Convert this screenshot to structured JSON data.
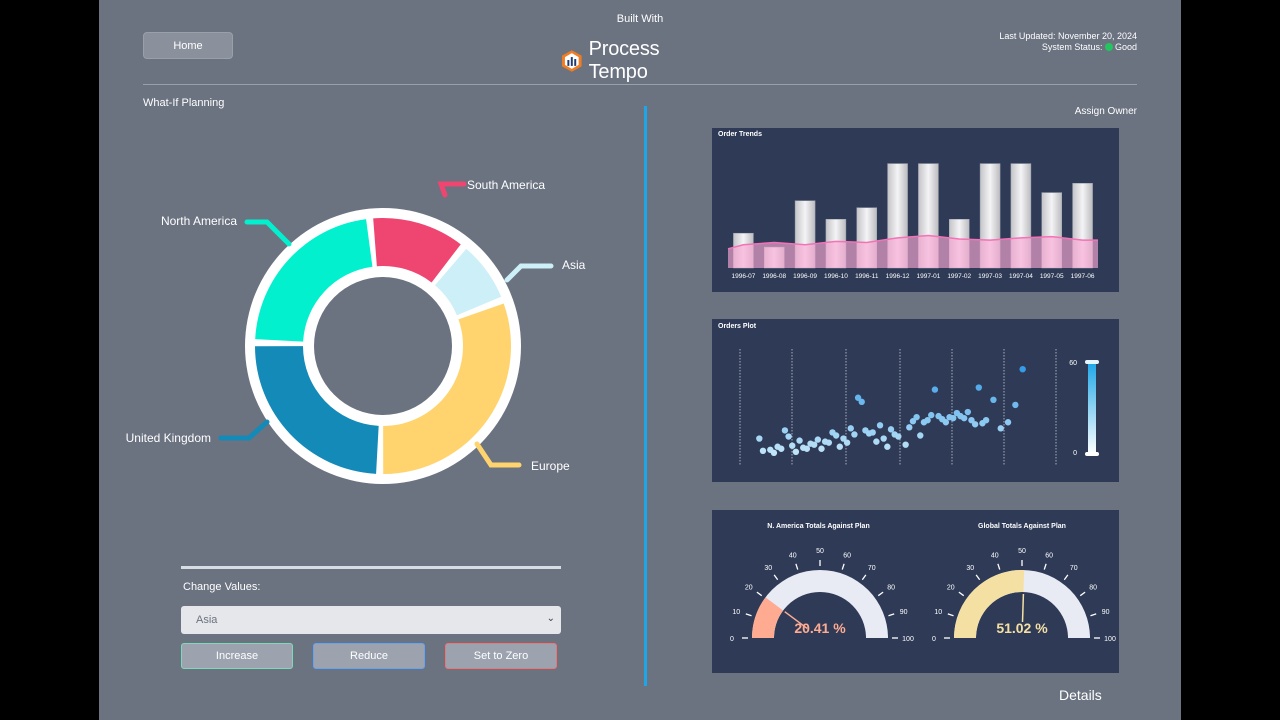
{
  "header": {
    "built_with": "Built With",
    "brand": "Process Tempo",
    "home": "Home",
    "last_updated": "Last Updated: November 20, 2024",
    "system_status_label": "System Status:",
    "system_status_value": "Good"
  },
  "left": {
    "title": "What-If Planning",
    "regions": [
      {
        "name": "South America",
        "value": 12,
        "color": "#ef4571"
      },
      {
        "name": "Asia",
        "value": 8,
        "color": "#cdeff7"
      },
      {
        "name": "Europe",
        "value": 30,
        "color": "#ffd46e"
      },
      {
        "name": "United Kingdom",
        "value": 24,
        "color": "#148ab8"
      },
      {
        "name": "North America",
        "value": 22,
        "color": "#03f0cf"
      }
    ],
    "change_values_label": "Change Values:",
    "selected_region": "Asia",
    "buttons": {
      "increase": "Increase",
      "reduce": "Reduce",
      "zero": "Set to Zero"
    }
  },
  "right": {
    "assign_owner": "Assign Owner",
    "details": "Details"
  },
  "chart_data": [
    {
      "type": "bar",
      "title": "Order Trends",
      "categories": [
        "1996-07",
        "1996-08",
        "1996-09",
        "1996-10",
        "1996-11",
        "1996-12",
        "1997-01",
        "1997-02",
        "1997-03",
        "1997-04",
        "1997-05",
        "1997-06"
      ],
      "series": [
        {
          "name": "bars",
          "values": [
            30,
            18,
            58,
            42,
            52,
            90,
            90,
            42,
            90,
            90,
            65,
            73
          ]
        },
        {
          "name": "line",
          "values": [
            20,
            22,
            20,
            23,
            22,
            26,
            28,
            25,
            24,
            26,
            27,
            24
          ]
        }
      ],
      "ylim": [
        0,
        100
      ]
    },
    {
      "type": "scatter",
      "title": "Orders Plot",
      "colorbar": {
        "min": 0,
        "max": 60
      },
      "points": [
        [
          2,
          22
        ],
        [
          3,
          10
        ],
        [
          5,
          11
        ],
        [
          6,
          8
        ],
        [
          7,
          14
        ],
        [
          8,
          12
        ],
        [
          9,
          30
        ],
        [
          10,
          24
        ],
        [
          11,
          15
        ],
        [
          12,
          9
        ],
        [
          13,
          20
        ],
        [
          14,
          13
        ],
        [
          15,
          12
        ],
        [
          16,
          17
        ],
        [
          17,
          16
        ],
        [
          18,
          21
        ],
        [
          19,
          12
        ],
        [
          20,
          19
        ],
        [
          21,
          18
        ],
        [
          22,
          28
        ],
        [
          23,
          25
        ],
        [
          24,
          14
        ],
        [
          25,
          22
        ],
        [
          26,
          18
        ],
        [
          27,
          32
        ],
        [
          28,
          26
        ],
        [
          29,
          62
        ],
        [
          30,
          58
        ],
        [
          31,
          30
        ],
        [
          32,
          27
        ],
        [
          33,
          28
        ],
        [
          34,
          19
        ],
        [
          35,
          35
        ],
        [
          36,
          22
        ],
        [
          37,
          14
        ],
        [
          38,
          31
        ],
        [
          39,
          26
        ],
        [
          40,
          24
        ],
        [
          42,
          16
        ],
        [
          43,
          33
        ],
        [
          44,
          39
        ],
        [
          45,
          43
        ],
        [
          46,
          25
        ],
        [
          47,
          38
        ],
        [
          48,
          40
        ],
        [
          49,
          45
        ],
        [
          50,
          70
        ],
        [
          51,
          44
        ],
        [
          52,
          41
        ],
        [
          53,
          38
        ],
        [
          54,
          43
        ],
        [
          55,
          42
        ],
        [
          56,
          47
        ],
        [
          57,
          44
        ],
        [
          58,
          42
        ],
        [
          59,
          48
        ],
        [
          60,
          40
        ],
        [
          61,
          36
        ],
        [
          62,
          72
        ],
        [
          63,
          37
        ],
        [
          64,
          40
        ],
        [
          66,
          60
        ],
        [
          68,
          32
        ],
        [
          70,
          38
        ],
        [
          72,
          55
        ],
        [
          74,
          90
        ]
      ]
    },
    {
      "type": "gauge",
      "title": "N. America Totals Against Plan",
      "value": 20.41,
      "label": "20.41 %",
      "range": [
        0,
        100
      ],
      "ticks": [
        "0",
        "10",
        "20",
        "30",
        "40",
        "50",
        "60",
        "70",
        "80",
        "90",
        "100"
      ],
      "color": "#ffab91"
    },
    {
      "type": "gauge",
      "title": "Global Totals Against Plan",
      "value": 51.02,
      "label": "51.02 %",
      "range": [
        0,
        100
      ],
      "ticks": [
        "0",
        "10",
        "20",
        "30",
        "40",
        "50",
        "60",
        "70",
        "80",
        "90",
        "100"
      ],
      "color": "#f5e0a3"
    }
  ]
}
